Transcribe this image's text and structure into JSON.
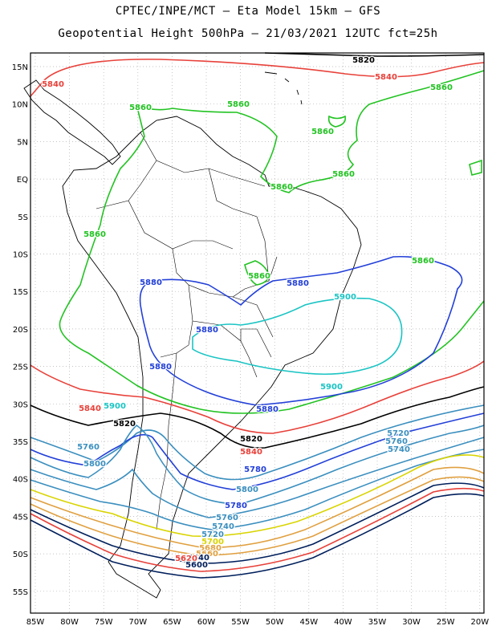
{
  "title_line1": "CPTEC/INPE/MCT –  Eta Model 15km – GFS",
  "title_line2": "Geopotential Height 500hPa – 21/03/2021 12UTC fct=25h",
  "lat_ticks": [
    "15N",
    "10N",
    "5N",
    "EQ",
    "5S",
    "10S",
    "15S",
    "20S",
    "25S",
    "30S",
    "35S",
    "40S",
    "45S",
    "50S",
    "55S"
  ],
  "lon_ticks": [
    "85W",
    "80W",
    "75W",
    "70W",
    "65W",
    "60W",
    "55W",
    "50W",
    "45W",
    "40W",
    "35W",
    "30W",
    "25W",
    "20W"
  ],
  "contour_labels": [
    {
      "text": "5820",
      "color": "#000000"
    },
    {
      "text": "5840",
      "color": "#e8413a"
    },
    {
      "text": "5840",
      "color": "#e8413a"
    },
    {
      "text": "5860",
      "color": "#22c322"
    },
    {
      "text": "5860",
      "color": "#22c322"
    },
    {
      "text": "5860",
      "color": "#22c322"
    },
    {
      "text": "5860",
      "color": "#22c322"
    },
    {
      "text": "5860",
      "color": "#22c322"
    },
    {
      "text": "5860",
      "color": "#22c322"
    },
    {
      "text": "5860",
      "color": "#22c322"
    },
    {
      "text": "5860",
      "color": "#22c322"
    },
    {
      "text": "5860",
      "color": "#22c322"
    },
    {
      "text": "5880",
      "color": "#2340d8"
    },
    {
      "text": "5880",
      "color": "#2340d8"
    },
    {
      "text": "5880",
      "color": "#2340d8"
    },
    {
      "text": "5880",
      "color": "#2340d8"
    },
    {
      "text": "5880",
      "color": "#2340d8"
    },
    {
      "text": "5900",
      "color": "#1cc4c4"
    },
    {
      "text": "5900",
      "color": "#1cc4c4"
    },
    {
      "text": "5900",
      "color": "#1cc4c4"
    },
    {
      "text": "5840",
      "color": "#e8413a"
    },
    {
      "text": "5820",
      "color": "#000000"
    },
    {
      "text": "5840",
      "color": "#e8413a"
    },
    {
      "text": "5820",
      "color": "#000000"
    },
    {
      "text": "5760",
      "color": "#3b8fbf"
    },
    {
      "text": "5800",
      "color": "#3b8fbf"
    },
    {
      "text": "5780",
      "color": "#2340d8"
    },
    {
      "text": "5800",
      "color": "#3b8fbf"
    },
    {
      "text": "5780",
      "color": "#2340d8"
    },
    {
      "text": "5760",
      "color": "#3b8fbf"
    },
    {
      "text": "5740",
      "color": "#3b8fbf"
    },
    {
      "text": "5720",
      "color": "#3b8fbf"
    },
    {
      "text": "5760",
      "color": "#3b8fbf"
    },
    {
      "text": "5740",
      "color": "#3b8fbf"
    },
    {
      "text": "5720",
      "color": "#3b8fbf"
    },
    {
      "text": "5700",
      "color": "#d9d400"
    },
    {
      "text": "5680",
      "color": "#e0a040"
    },
    {
      "text": "5660",
      "color": "#e0a040"
    },
    {
      "text": "5640",
      "color": "#001f5c"
    },
    {
      "text": "5620",
      "color": "#e8413a"
    },
    {
      "text": "5600",
      "color": "#001f5c"
    }
  ],
  "colors": {
    "frame": "#000000",
    "grid": "#b0b0b0",
    "coast": "#000000",
    "c5600": "#001f5c",
    "c5620": "#e8413a",
    "c5640": "#001f5c",
    "c5660": "#e0a040",
    "c5680": "#e0a040",
    "c5700": "#d9d400",
    "c5720": "#3b8fbf",
    "c5740": "#3b8fbf",
    "c5760": "#3b8fbf",
    "c5780": "#2340d8",
    "c5800": "#3b8fbf",
    "c5820": "#000000",
    "c5840": "#e8413a",
    "c5860": "#22c322",
    "c5880": "#2340d8",
    "c5900": "#1cc4c4"
  }
}
